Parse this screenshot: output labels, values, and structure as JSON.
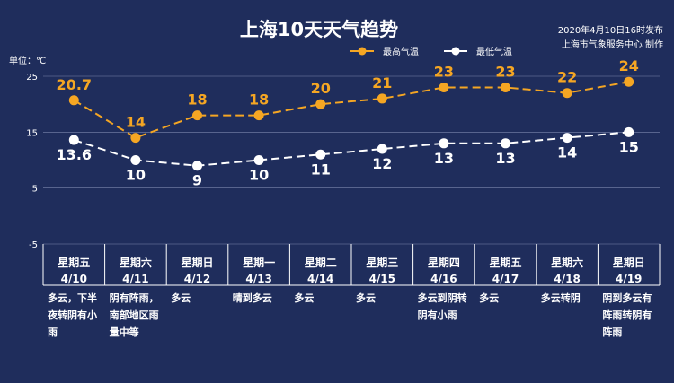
{
  "header": {
    "title": "上海10天天气趋势",
    "publish_line1": "2020年4月10日16时发布",
    "publish_line2": "上海市气象服务中心 制作"
  },
  "colors": {
    "background": "#1f2d5c",
    "high_series": "#f5a623",
    "low_series": "#ffffff",
    "grid": "#7a86ad"
  },
  "chart_data": {
    "type": "line",
    "title": "上海10天天气趋势",
    "ylabel": "单位：℃",
    "ylim": [
      -5,
      25
    ],
    "yticks": [
      25,
      15,
      5,
      -5
    ],
    "legend_position": "top-right",
    "categories": [
      "4/10",
      "4/11",
      "4/12",
      "4/13",
      "4/14",
      "4/15",
      "4/16",
      "4/17",
      "4/18",
      "4/19"
    ],
    "weekdays": [
      "星期五",
      "星期六",
      "星期日",
      "星期一",
      "星期二",
      "星期三",
      "星期四",
      "星期五",
      "星期六",
      "星期日"
    ],
    "conditions": [
      [
        "多云，下半",
        "夜转阴有小",
        "雨"
      ],
      [
        "阴有阵雨，",
        "南部地区雨",
        "量中等"
      ],
      [
        "多云"
      ],
      [
        "晴到多云"
      ],
      [
        "多云"
      ],
      [
        "多云"
      ],
      [
        "多云到阴转",
        "阴有小雨"
      ],
      [
        "多云"
      ],
      [
        "多云转阴"
      ],
      [
        "阴到多云有",
        "阵雨转阴有",
        "阵雨"
      ]
    ],
    "series": [
      {
        "name": "最高气温",
        "values": [
          20.7,
          14,
          18,
          18,
          20,
          21,
          23,
          23,
          22,
          24
        ],
        "labels": [
          "20.7",
          "14",
          "18",
          "18",
          "20",
          "21",
          "23",
          "23",
          "22",
          "24"
        ]
      },
      {
        "name": "最低气温",
        "values": [
          13.6,
          10,
          9,
          10,
          11,
          12,
          13,
          13,
          14,
          15
        ],
        "labels": [
          "13.6",
          "10",
          "9",
          "10",
          "11",
          "12",
          "13",
          "13",
          "14",
          "15"
        ]
      }
    ]
  }
}
